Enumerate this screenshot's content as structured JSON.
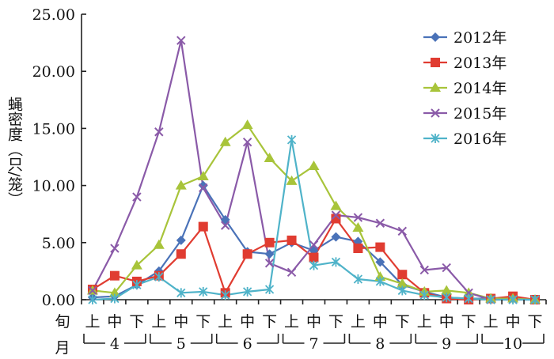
{
  "chart_data": {
    "type": "line",
    "ylabel": "蝇密度（只/笼）",
    "ylim": [
      0,
      25
    ],
    "yticks": [
      "0.00",
      "5.00",
      "10.00",
      "15.00",
      "20.00",
      "25.00"
    ],
    "x_row_label": "旬",
    "x_month_label": "月",
    "categories": [
      "上",
      "中",
      "下",
      "上",
      "中",
      "下",
      "上",
      "中",
      "下",
      "上",
      "中",
      "下",
      "上",
      "中",
      "下",
      "上",
      "中",
      "下",
      "上",
      "中",
      "下"
    ],
    "months": [
      "4",
      "5",
      "6",
      "7",
      "8",
      "9",
      "10"
    ],
    "legend_position": "top-right",
    "series": [
      {
        "name": "2012年",
        "color": "#4a72b8",
        "marker": "diamond",
        "values": [
          0.2,
          0.3,
          1.3,
          2.5,
          5.2,
          10.0,
          7.0,
          4.2,
          4.0,
          5.0,
          4.3,
          5.5,
          5.1,
          3.3,
          1.3,
          0.7,
          0.2,
          0.1,
          0.1,
          0.1,
          0.0
        ]
      },
      {
        "name": "2013年",
        "color": "#e03c31",
        "marker": "square",
        "values": [
          0.9,
          2.1,
          1.6,
          2.1,
          4.0,
          6.4,
          0.6,
          4.0,
          5.0,
          5.2,
          3.7,
          7.1,
          4.5,
          4.6,
          2.2,
          0.6,
          0.1,
          0.0,
          0.1,
          0.3,
          0.0
        ]
      },
      {
        "name": "2014年",
        "color": "#a8c43a",
        "marker": "triangle",
        "values": [
          0.8,
          0.6,
          3.0,
          4.8,
          10.0,
          10.8,
          13.8,
          15.3,
          12.4,
          10.4,
          11.7,
          8.2,
          6.3,
          2.0,
          1.4,
          0.7,
          0.8,
          0.6,
          0.1,
          0.1,
          0.0
        ]
      },
      {
        "name": "2015年",
        "color": "#8a5aa8",
        "marker": "x",
        "values": [
          0.8,
          4.5,
          9.0,
          14.7,
          22.7,
          9.8,
          6.5,
          13.8,
          3.2,
          2.4,
          4.8,
          7.4,
          7.2,
          6.7,
          6.0,
          2.6,
          2.8,
          0.6,
          0.0,
          0.0,
          0.0
        ]
      },
      {
        "name": "2016年",
        "color": "#4fb3c9",
        "marker": "star",
        "values": [
          0.0,
          0.1,
          1.3,
          2.0,
          0.6,
          0.7,
          0.4,
          0.7,
          0.9,
          14.0,
          3.0,
          3.3,
          1.8,
          1.6,
          0.8,
          0.4,
          0.2,
          0.1,
          0.0,
          0.0,
          0.0
        ]
      }
    ]
  }
}
